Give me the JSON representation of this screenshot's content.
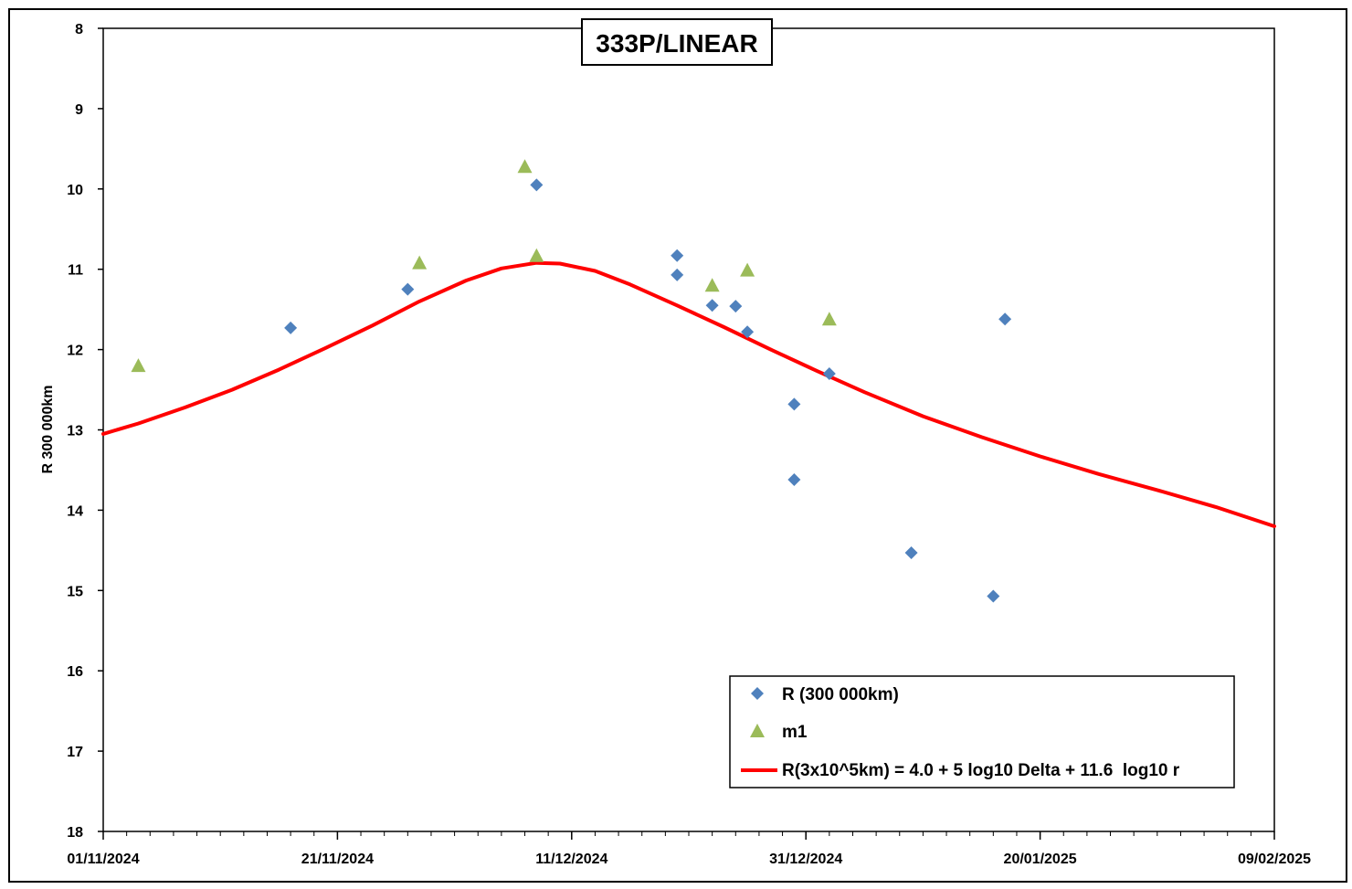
{
  "chart_data": {
    "type": "scatter",
    "title": "333P/LINEAR",
    "ylabel": "R 300 000km",
    "xlabel": "",
    "x_axis": {
      "type": "date",
      "range": [
        "2024-11-01",
        "2025-02-09"
      ],
      "tick_labels": [
        "01/11/2024",
        "21/11/2024",
        "11/12/2024",
        "31/12/2024",
        "20/01/2025",
        "09/02/2025"
      ],
      "minor_tick_every_days": 2
    },
    "y_axis": {
      "range": [
        8,
        18
      ],
      "inverted": true,
      "tick_labels": [
        "8",
        "9",
        "10",
        "11",
        "12",
        "13",
        "14",
        "15",
        "16",
        "17",
        "18"
      ]
    },
    "grid": false,
    "legend_position": "bottom-right",
    "colors": {
      "r_series": "#4f81bd",
      "m1_series": "#9bbb59",
      "model_line": "#ff0000"
    },
    "series": [
      {
        "name": "R (300 000km)",
        "marker": "diamond",
        "points": [
          {
            "x": "2024-11-17",
            "y": 11.73
          },
          {
            "x": "2024-11-27",
            "y": 11.25
          },
          {
            "x": "2024-12-08",
            "y": 9.95
          },
          {
            "x": "2024-12-20",
            "y": 10.83
          },
          {
            "x": "2024-12-20",
            "y": 11.07
          },
          {
            "x": "2024-12-23",
            "y": 11.45
          },
          {
            "x": "2024-12-25",
            "y": 11.46
          },
          {
            "x": "2024-12-26",
            "y": 11.78
          },
          {
            "x": "2024-12-30",
            "y": 12.68
          },
          {
            "x": "2024-12-30",
            "y": 13.62
          },
          {
            "x": "2025-01-02",
            "y": 12.3
          },
          {
            "x": "2025-01-09",
            "y": 14.53
          },
          {
            "x": "2025-01-16",
            "y": 15.07
          },
          {
            "x": "2025-01-17",
            "y": 11.62
          }
        ]
      },
      {
        "name": "m1",
        "marker": "triangle",
        "points": [
          {
            "x": "2024-11-04",
            "y": 12.2
          },
          {
            "x": "2024-11-28",
            "y": 10.92
          },
          {
            "x": "2024-12-07",
            "y": 9.72
          },
          {
            "x": "2024-12-08",
            "y": 10.83
          },
          {
            "x": "2024-12-23",
            "y": 11.2
          },
          {
            "x": "2024-12-26",
            "y": 11.01
          },
          {
            "x": "2025-01-02",
            "y": 11.62
          }
        ]
      },
      {
        "name": "R(3x10^5km) = 4.0 + 5 log10 Delta + 11.6  log10 r",
        "marker": "line",
        "points": [
          {
            "x": "2024-11-01",
            "y": 13.05
          },
          {
            "x": "2024-11-04",
            "y": 12.92
          },
          {
            "x": "2024-11-08",
            "y": 12.72
          },
          {
            "x": "2024-11-12",
            "y": 12.5
          },
          {
            "x": "2024-11-16",
            "y": 12.25
          },
          {
            "x": "2024-11-20",
            "y": 11.98
          },
          {
            "x": "2024-11-24",
            "y": 11.7
          },
          {
            "x": "2024-11-28",
            "y": 11.4
          },
          {
            "x": "2024-12-02",
            "y": 11.14
          },
          {
            "x": "2024-12-05",
            "y": 10.99
          },
          {
            "x": "2024-12-08",
            "y": 10.92
          },
          {
            "x": "2024-12-10",
            "y": 10.93
          },
          {
            "x": "2024-12-13",
            "y": 11.02
          },
          {
            "x": "2024-12-16",
            "y": 11.19
          },
          {
            "x": "2024-12-20",
            "y": 11.45
          },
          {
            "x": "2024-12-24",
            "y": 11.72
          },
          {
            "x": "2024-12-28",
            "y": 12.0
          },
          {
            "x": "2025-01-01",
            "y": 12.27
          },
          {
            "x": "2025-01-05",
            "y": 12.53
          },
          {
            "x": "2025-01-10",
            "y": 12.83
          },
          {
            "x": "2025-01-15",
            "y": 13.09
          },
          {
            "x": "2025-01-20",
            "y": 13.33
          },
          {
            "x": "2025-01-25",
            "y": 13.55
          },
          {
            "x": "2025-01-30",
            "y": 13.75
          },
          {
            "x": "2025-02-04",
            "y": 13.96
          },
          {
            "x": "2025-02-09",
            "y": 14.2
          }
        ]
      }
    ]
  }
}
